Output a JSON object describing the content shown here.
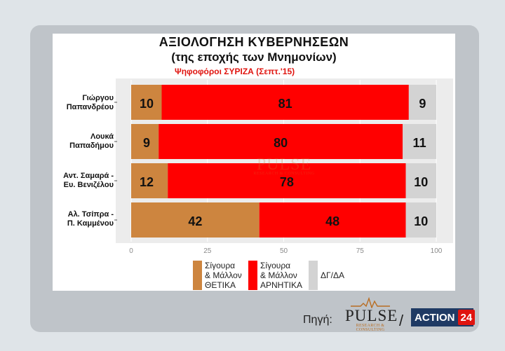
{
  "chart_data": {
    "type": "bar",
    "orientation": "horizontal-stacked",
    "title": "ΑΞΙΟΛΟΓΗΣΗ ΚΥΒΕΡΝΗΣΕΩΝ",
    "subtitle": "(της εποχής των Μνημονίων)",
    "note": "Ψηφοφόροι ΣΥΡΙΖΑ (Σεπτ.'15)",
    "categories": [
      [
        "Γιώργου",
        "Παπανδρέου"
      ],
      [
        "Λουκά",
        "Παπαδήμου"
      ],
      [
        "Αντ. Σαμαρά -",
        "Ευ. Βενιζέλου"
      ],
      [
        "Αλ. Τσίπρα -",
        "Π. Καμμένου"
      ]
    ],
    "series": [
      {
        "name": "Σίγουρα & Μάλλον ΘΕΤΙΚΑ",
        "legend_lines": [
          "Σίγουρα",
          "& Μάλλον",
          "ΘΕΤΙΚΑ"
        ],
        "color": "#cd853f",
        "values": [
          10,
          9,
          12,
          42
        ]
      },
      {
        "name": "Σίγουρα & Μάλλον ΑΡΝΗΤΙΚΑ",
        "legend_lines": [
          "Σίγουρα",
          "& Μάλλον",
          "ΑΡΝΗΤΙΚΑ"
        ],
        "color": "#ff0000",
        "values": [
          81,
          80,
          78,
          48
        ]
      },
      {
        "name": "ΔΓ/ΔΑ",
        "legend_lines": [
          "ΔΓ/ΔΑ"
        ],
        "color": "#d3d3d3",
        "values": [
          9,
          11,
          10,
          10
        ]
      }
    ],
    "xlim": [
      0,
      100
    ],
    "xticks": [
      "0",
      "25",
      "50",
      "75",
      "100"
    ],
    "legend": "bottom",
    "grid": true
  },
  "watermark": {
    "word": "PULSE",
    "sub": "RESEARCH & CONSULTING"
  },
  "footer": {
    "source_label": "Πηγή:",
    "pulse_word": "PULSE",
    "pulse_sub": "RESEARCH & CONSULTING",
    "separator": "/",
    "action_word": "ACTION",
    "action_num": "24"
  }
}
